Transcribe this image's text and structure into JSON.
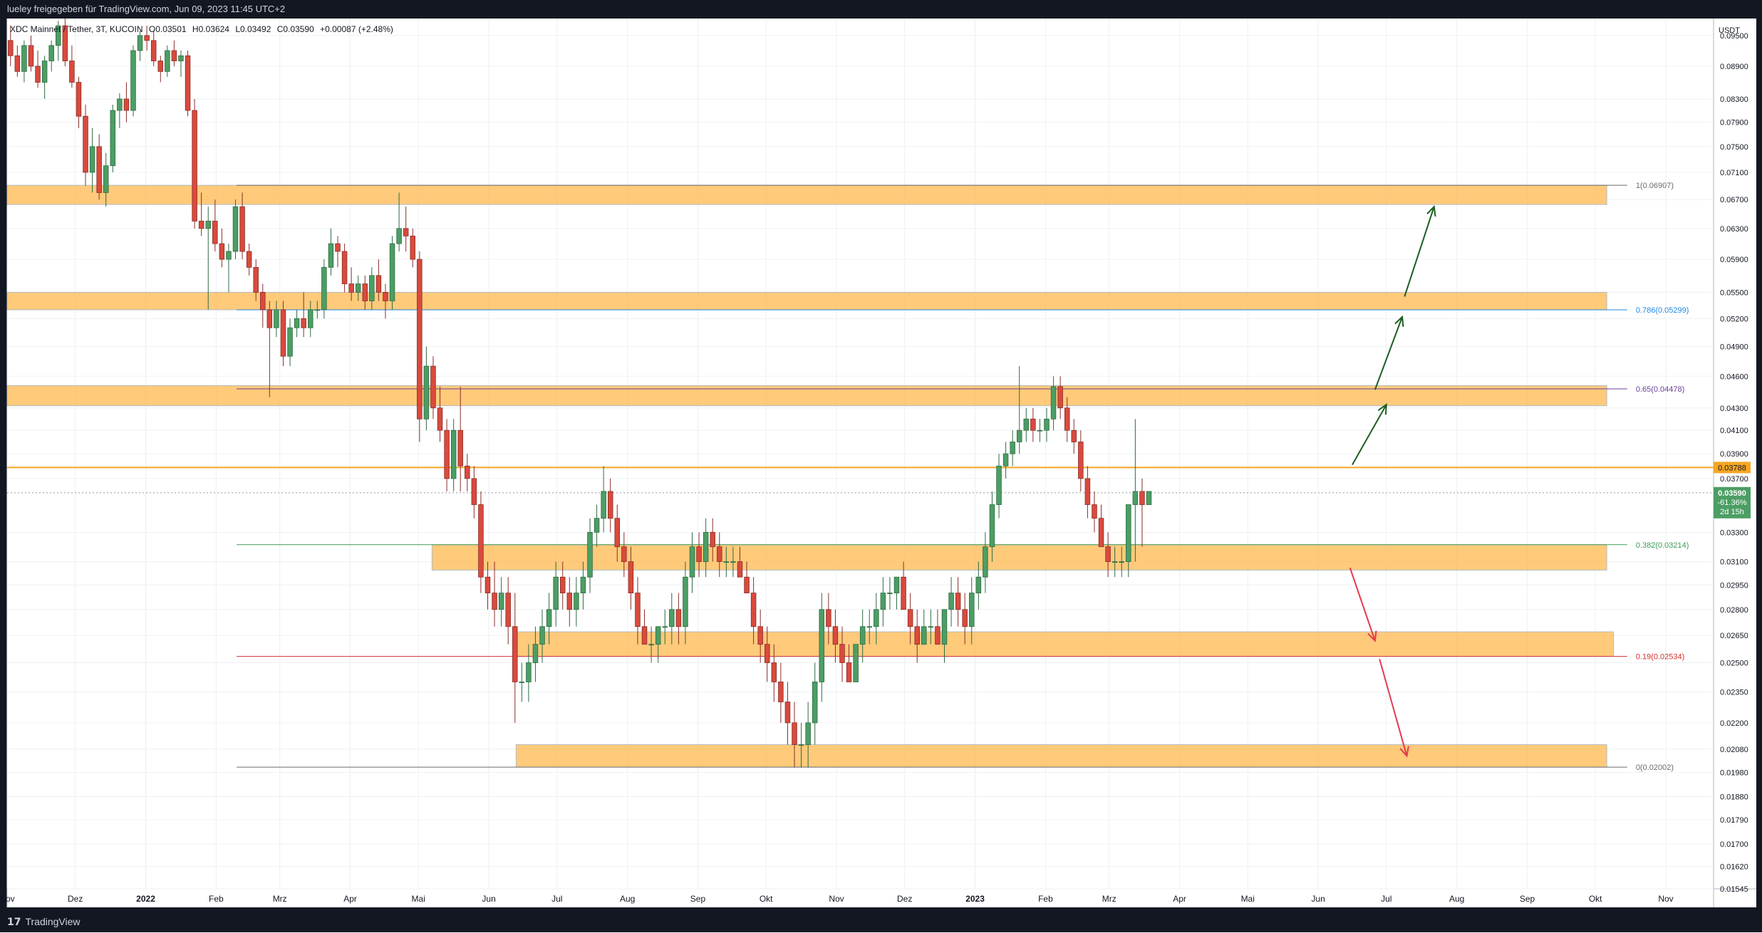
{
  "header": {
    "publish_note": "lueley freigegeben für TradingView.com, Jun 09, 2023 11:45 UTC+2"
  },
  "legend": {
    "symbol": "XDC Mainnet / Tether, 3T, KUCOIN",
    "open": "O0.03501",
    "high": "H0.03624",
    "low": "L0.03492",
    "close": "C0.03590",
    "change": "+0.00087 (+2.48%)"
  },
  "footer": {
    "brand": "TradingView",
    "logo_glyph": "17"
  },
  "colors": {
    "up": "#26a69a",
    "up_fill": "#4c9e64",
    "down": "#d94a3d",
    "zone_fill": "#ffb84d",
    "zone_border": "#b0bec5",
    "grid": "#edf0f4",
    "price_line": "#f5a623",
    "fib_green": "#3d9a58",
    "fib_red": "#d32f2f",
    "fib_blue": "#1e88e5",
    "fib_purple": "#6a3d9a",
    "fib_gray": "#6b6b6b",
    "arrow_green": "#1b5e20",
    "arrow_red": "#e53950"
  },
  "chart_data": {
    "type": "candlestick",
    "currency_label": "USDT",
    "scale": "log",
    "ylim": [
      0.01545,
      0.0985
    ],
    "y_ticks": [
      "0.09500",
      "0.08900",
      "0.08300",
      "0.07900",
      "0.07500",
      "0.07100",
      "0.06700",
      "0.06300",
      "0.05900",
      "0.05500",
      "0.05200",
      "0.04900",
      "0.04600",
      "0.04300",
      "0.04100",
      "0.03900",
      "0.03700",
      "0.03300",
      "0.03100",
      "0.02950",
      "0.02800",
      "0.02650",
      "0.02500",
      "0.02350",
      "0.02200",
      "0.02080",
      "0.01980",
      "0.01880",
      "0.01790",
      "0.01700",
      "0.01620",
      "0.01545"
    ],
    "x_range": [
      "2021-11-01",
      "2023-11-22"
    ],
    "x_ticks": [
      {
        "label": "Nov",
        "date": "2021-11-01"
      },
      {
        "label": "Dez",
        "date": "2021-12-01"
      },
      {
        "label": "2022",
        "date": "2022-01-01"
      },
      {
        "label": "Feb",
        "date": "2022-02-01"
      },
      {
        "label": "Mrz",
        "date": "2022-03-01"
      },
      {
        "label": "Apr",
        "date": "2022-04-01"
      },
      {
        "label": "Mai",
        "date": "2022-05-01"
      },
      {
        "label": "Jun",
        "date": "2022-06-01"
      },
      {
        "label": "Jul",
        "date": "2022-07-01"
      },
      {
        "label": "Aug",
        "date": "2022-08-01"
      },
      {
        "label": "Sep",
        "date": "2022-09-01"
      },
      {
        "label": "Okt",
        "date": "2022-10-01"
      },
      {
        "label": "Nov",
        "date": "2022-11-01"
      },
      {
        "label": "Dez",
        "date": "2022-12-01"
      },
      {
        "label": "2023",
        "date": "2023-01-01"
      },
      {
        "label": "Feb",
        "date": "2023-02-01"
      },
      {
        "label": "Mrz",
        "date": "2023-03-01"
      },
      {
        "label": "Apr",
        "date": "2023-04-01"
      },
      {
        "label": "Mai",
        "date": "2023-05-01"
      },
      {
        "label": "Jun",
        "date": "2023-06-01"
      },
      {
        "label": "Jul",
        "date": "2023-07-01"
      },
      {
        "label": "Aug",
        "date": "2023-08-01"
      },
      {
        "label": "Sep",
        "date": "2023-09-01"
      },
      {
        "label": "Okt",
        "date": "2023-10-01"
      },
      {
        "label": "Nov",
        "date": "2023-11-01"
      }
    ],
    "current_price": {
      "value": 0.0359,
      "label": "0.03590",
      "change": "-61.36%",
      "countdown": "2d 15h"
    },
    "marked_level": {
      "value": 0.03788,
      "label": "0.03788"
    },
    "last_close_line": 0.0359,
    "fib_levels": [
      {
        "ratio": "1",
        "value": 0.06907,
        "label": "1(0.06907)",
        "color_key": "fib_gray"
      },
      {
        "ratio": "0.786",
        "value": 0.05299,
        "label": "0.786(0.05299)",
        "color_key": "fib_blue"
      },
      {
        "ratio": "0.65",
        "value": 0.04478,
        "label": "0.65(0.04478)",
        "color_key": "fib_purple"
      },
      {
        "ratio": "0.382",
        "value": 0.03214,
        "label": "0.382(0.03214)",
        "color_key": "fib_green"
      },
      {
        "ratio": "0.19",
        "value": 0.02534,
        "label": "0.19(0.02534)",
        "color_key": "fib_red"
      },
      {
        "ratio": "0",
        "value": 0.02002,
        "label": "0(0.02002)",
        "color_key": "fib_gray"
      }
    ],
    "fib_start_date": "2022-02-10",
    "fib_end_date": "2023-10-15",
    "zones": [
      {
        "name": "resistance-zone-1",
        "start": "2021-11-01",
        "end": "2023-10-06",
        "top": 0.06907,
        "bottom": 0.0663
      },
      {
        "name": "resistance-zone-2",
        "start": "2021-11-01",
        "end": "2023-10-06",
        "top": 0.055,
        "bottom": 0.05299
      },
      {
        "name": "resistance-zone-3",
        "start": "2021-11-01",
        "end": "2023-10-06",
        "top": 0.0451,
        "bottom": 0.0432
      },
      {
        "name": "support-zone-1",
        "start": "2022-05-07",
        "end": "2023-10-06",
        "top": 0.03214,
        "bottom": 0.03045
      },
      {
        "name": "support-zone-2",
        "start": "2022-06-13",
        "end": "2023-10-09",
        "top": 0.0267,
        "bottom": 0.02534
      },
      {
        "name": "support-zone-3",
        "start": "2022-06-13",
        "end": "2023-10-06",
        "top": 0.021,
        "bottom": 0.02002
      }
    ],
    "arrows": [
      {
        "color_key": "arrow_green",
        "from": {
          "date": "2023-06-16",
          "price": 0.0381
        },
        "to": {
          "date": "2023-07-01",
          "price": 0.0433
        }
      },
      {
        "color_key": "arrow_green",
        "from": {
          "date": "2023-06-26",
          "price": 0.0447
        },
        "to": {
          "date": "2023-07-08",
          "price": 0.0522
        }
      },
      {
        "color_key": "arrow_green",
        "from": {
          "date": "2023-07-09",
          "price": 0.0545
        },
        "to": {
          "date": "2023-07-22",
          "price": 0.066
        }
      },
      {
        "color_key": "arrow_red",
        "from": {
          "date": "2023-06-15",
          "price": 0.0306
        },
        "to": {
          "date": "2023-06-26",
          "price": 0.0262
        }
      },
      {
        "color_key": "arrow_red",
        "from": {
          "date": "2023-06-28",
          "price": 0.0252
        },
        "to": {
          "date": "2023-07-10",
          "price": 0.0205
        }
      }
    ],
    "candles_start": "2021-11-01",
    "candle_interval_days": 3,
    "candles": [
      [
        0.094,
        0.097,
        0.089,
        0.091
      ],
      [
        0.091,
        0.093,
        0.087,
        0.088
      ],
      [
        0.088,
        0.094,
        0.086,
        0.093
      ],
      [
        0.093,
        0.095,
        0.088,
        0.089
      ],
      [
        0.089,
        0.092,
        0.085,
        0.086
      ],
      [
        0.086,
        0.091,
        0.083,
        0.09
      ],
      [
        0.09,
        0.094,
        0.088,
        0.093
      ],
      [
        0.093,
        0.098,
        0.09,
        0.097
      ],
      [
        0.097,
        0.099,
        0.089,
        0.09
      ],
      [
        0.09,
        0.093,
        0.085,
        0.086
      ],
      [
        0.086,
        0.087,
        0.078,
        0.08
      ],
      [
        0.08,
        0.082,
        0.069,
        0.071
      ],
      [
        0.071,
        0.078,
        0.068,
        0.075
      ],
      [
        0.075,
        0.077,
        0.067,
        0.068
      ],
      [
        0.068,
        0.074,
        0.066,
        0.072
      ],
      [
        0.072,
        0.082,
        0.071,
        0.081
      ],
      [
        0.081,
        0.084,
        0.078,
        0.083
      ],
      [
        0.083,
        0.086,
        0.079,
        0.081
      ],
      [
        0.081,
        0.093,
        0.08,
        0.092
      ],
      [
        0.092,
        0.096,
        0.09,
        0.095
      ],
      [
        0.095,
        0.097,
        0.092,
        0.094
      ],
      [
        0.094,
        0.096,
        0.089,
        0.09
      ],
      [
        0.09,
        0.091,
        0.086,
        0.088
      ],
      [
        0.088,
        0.093,
        0.087,
        0.092
      ],
      [
        0.092,
        0.094,
        0.089,
        0.09
      ],
      [
        0.09,
        0.092,
        0.087,
        0.091
      ],
      [
        0.091,
        0.092,
        0.08,
        0.081
      ],
      [
        0.081,
        0.083,
        0.063,
        0.064
      ],
      [
        0.064,
        0.068,
        0.062,
        0.063
      ],
      [
        0.063,
        0.066,
        0.053,
        0.064
      ],
      [
        0.064,
        0.067,
        0.06,
        0.061
      ],
      [
        0.061,
        0.063,
        0.058,
        0.059
      ],
      [
        0.059,
        0.061,
        0.055,
        0.06
      ],
      [
        0.06,
        0.067,
        0.059,
        0.066
      ],
      [
        0.066,
        0.068,
        0.059,
        0.06
      ],
      [
        0.06,
        0.061,
        0.057,
        0.058
      ],
      [
        0.058,
        0.059,
        0.054,
        0.055
      ],
      [
        0.055,
        0.056,
        0.051,
        0.053
      ],
      [
        0.053,
        0.054,
        0.044,
        0.051
      ],
      [
        0.051,
        0.054,
        0.05,
        0.053
      ],
      [
        0.053,
        0.054,
        0.047,
        0.048
      ],
      [
        0.048,
        0.052,
        0.047,
        0.051
      ],
      [
        0.051,
        0.053,
        0.05,
        0.052
      ],
      [
        0.052,
        0.055,
        0.05,
        0.051
      ],
      [
        0.051,
        0.054,
        0.05,
        0.053
      ],
      [
        0.053,
        0.054,
        0.052,
        0.053
      ],
      [
        0.053,
        0.059,
        0.052,
        0.058
      ],
      [
        0.058,
        0.063,
        0.057,
        0.061
      ],
      [
        0.061,
        0.062,
        0.058,
        0.06
      ],
      [
        0.06,
        0.061,
        0.055,
        0.056
      ],
      [
        0.056,
        0.058,
        0.054,
        0.055
      ],
      [
        0.055,
        0.057,
        0.054,
        0.056
      ],
      [
        0.056,
        0.057,
        0.053,
        0.054
      ],
      [
        0.054,
        0.058,
        0.053,
        0.057
      ],
      [
        0.057,
        0.059,
        0.054,
        0.055
      ],
      [
        0.055,
        0.056,
        0.052,
        0.054
      ],
      [
        0.054,
        0.062,
        0.053,
        0.061
      ],
      [
        0.061,
        0.068,
        0.06,
        0.063
      ],
      [
        0.063,
        0.066,
        0.06,
        0.062
      ],
      [
        0.062,
        0.063,
        0.058,
        0.059
      ],
      [
        0.059,
        0.06,
        0.04,
        0.042
      ],
      [
        0.042,
        0.049,
        0.041,
        0.047
      ],
      [
        0.047,
        0.048,
        0.042,
        0.043
      ],
      [
        0.043,
        0.045,
        0.04,
        0.041
      ],
      [
        0.041,
        0.042,
        0.036,
        0.037
      ],
      [
        0.037,
        0.042,
        0.036,
        0.041
      ],
      [
        0.041,
        0.045,
        0.036,
        0.038
      ],
      [
        0.038,
        0.039,
        0.036,
        0.037
      ],
      [
        0.037,
        0.038,
        0.034,
        0.035
      ],
      [
        0.035,
        0.036,
        0.029,
        0.03
      ],
      [
        0.03,
        0.031,
        0.028,
        0.029
      ],
      [
        0.029,
        0.031,
        0.027,
        0.028
      ],
      [
        0.028,
        0.03,
        0.027,
        0.029
      ],
      [
        0.029,
        0.03,
        0.026,
        0.027
      ],
      [
        0.027,
        0.029,
        0.022,
        0.024
      ],
      [
        0.024,
        0.025,
        0.023,
        0.024
      ],
      [
        0.024,
        0.026,
        0.023,
        0.025
      ],
      [
        0.025,
        0.027,
        0.024,
        0.026
      ],
      [
        0.026,
        0.028,
        0.025,
        0.027
      ],
      [
        0.027,
        0.029,
        0.026,
        0.028
      ],
      [
        0.028,
        0.031,
        0.027,
        0.03
      ],
      [
        0.03,
        0.031,
        0.028,
        0.029
      ],
      [
        0.029,
        0.03,
        0.027,
        0.028
      ],
      [
        0.028,
        0.03,
        0.027,
        0.029
      ],
      [
        0.029,
        0.031,
        0.028,
        0.03
      ],
      [
        0.03,
        0.034,
        0.029,
        0.033
      ],
      [
        0.033,
        0.035,
        0.032,
        0.034
      ],
      [
        0.034,
        0.038,
        0.033,
        0.036
      ],
      [
        0.036,
        0.037,
        0.033,
        0.034
      ],
      [
        0.034,
        0.035,
        0.031,
        0.032
      ],
      [
        0.032,
        0.033,
        0.03,
        0.031
      ],
      [
        0.031,
        0.032,
        0.028,
        0.029
      ],
      [
        0.029,
        0.03,
        0.026,
        0.027
      ],
      [
        0.027,
        0.028,
        0.026,
        0.026
      ],
      [
        0.026,
        0.027,
        0.025,
        0.026
      ],
      [
        0.026,
        0.027,
        0.025,
        0.027
      ],
      [
        0.027,
        0.028,
        0.026,
        0.027
      ],
      [
        0.027,
        0.029,
        0.026,
        0.028
      ],
      [
        0.028,
        0.029,
        0.026,
        0.027
      ],
      [
        0.027,
        0.031,
        0.026,
        0.03
      ],
      [
        0.03,
        0.033,
        0.029,
        0.032
      ],
      [
        0.032,
        0.033,
        0.03,
        0.031
      ],
      [
        0.031,
        0.034,
        0.03,
        0.033
      ],
      [
        0.033,
        0.034,
        0.031,
        0.032
      ],
      [
        0.032,
        0.033,
        0.03,
        0.031
      ],
      [
        0.031,
        0.032,
        0.03,
        0.031
      ],
      [
        0.031,
        0.032,
        0.03,
        0.031
      ],
      [
        0.031,
        0.032,
        0.03,
        0.03
      ],
      [
        0.03,
        0.031,
        0.029,
        0.029
      ],
      [
        0.029,
        0.03,
        0.026,
        0.027
      ],
      [
        0.027,
        0.028,
        0.025,
        0.026
      ],
      [
        0.026,
        0.027,
        0.024,
        0.025
      ],
      [
        0.025,
        0.026,
        0.023,
        0.024
      ],
      [
        0.024,
        0.025,
        0.022,
        0.023
      ],
      [
        0.023,
        0.024,
        0.021,
        0.022
      ],
      [
        0.022,
        0.023,
        0.02,
        0.021
      ],
      [
        0.021,
        0.022,
        0.02,
        0.021
      ],
      [
        0.021,
        0.023,
        0.02,
        0.022
      ],
      [
        0.022,
        0.025,
        0.021,
        0.024
      ],
      [
        0.024,
        0.029,
        0.023,
        0.028
      ],
      [
        0.028,
        0.029,
        0.026,
        0.027
      ],
      [
        0.027,
        0.028,
        0.025,
        0.026
      ],
      [
        0.026,
        0.027,
        0.024,
        0.025
      ],
      [
        0.025,
        0.026,
        0.024,
        0.024
      ],
      [
        0.024,
        0.026,
        0.024,
        0.026
      ],
      [
        0.026,
        0.028,
        0.025,
        0.027
      ],
      [
        0.027,
        0.028,
        0.026,
        0.027
      ],
      [
        0.027,
        0.029,
        0.026,
        0.028
      ],
      [
        0.028,
        0.03,
        0.027,
        0.029
      ],
      [
        0.029,
        0.03,
        0.028,
        0.029
      ],
      [
        0.029,
        0.03,
        0.028,
        0.03
      ],
      [
        0.03,
        0.031,
        0.028,
        0.028
      ],
      [
        0.028,
        0.029,
        0.026,
        0.027
      ],
      [
        0.027,
        0.028,
        0.025,
        0.026
      ],
      [
        0.026,
        0.028,
        0.026,
        0.027
      ],
      [
        0.027,
        0.028,
        0.026,
        0.027
      ],
      [
        0.027,
        0.028,
        0.026,
        0.026
      ],
      [
        0.026,
        0.028,
        0.025,
        0.028
      ],
      [
        0.028,
        0.03,
        0.027,
        0.029
      ],
      [
        0.029,
        0.03,
        0.027,
        0.028
      ],
      [
        0.028,
        0.029,
        0.026,
        0.027
      ],
      [
        0.027,
        0.03,
        0.026,
        0.029
      ],
      [
        0.029,
        0.031,
        0.028,
        0.03
      ],
      [
        0.03,
        0.033,
        0.029,
        0.032
      ],
      [
        0.032,
        0.036,
        0.031,
        0.035
      ],
      [
        0.035,
        0.039,
        0.034,
        0.038
      ],
      [
        0.038,
        0.04,
        0.037,
        0.039
      ],
      [
        0.039,
        0.041,
        0.038,
        0.04
      ],
      [
        0.04,
        0.047,
        0.039,
        0.041
      ],
      [
        0.041,
        0.043,
        0.04,
        0.042
      ],
      [
        0.042,
        0.043,
        0.04,
        0.041
      ],
      [
        0.041,
        0.042,
        0.04,
        0.041
      ],
      [
        0.041,
        0.043,
        0.04,
        0.042
      ],
      [
        0.042,
        0.046,
        0.041,
        0.045
      ],
      [
        0.045,
        0.046,
        0.042,
        0.043
      ],
      [
        0.043,
        0.044,
        0.04,
        0.041
      ],
      [
        0.041,
        0.042,
        0.039,
        0.04
      ],
      [
        0.04,
        0.041,
        0.036,
        0.037
      ],
      [
        0.037,
        0.038,
        0.034,
        0.035
      ],
      [
        0.035,
        0.036,
        0.033,
        0.034
      ],
      [
        0.034,
        0.035,
        0.032,
        0.032
      ],
      [
        0.032,
        0.033,
        0.03,
        0.031
      ],
      [
        0.031,
        0.032,
        0.03,
        0.031
      ],
      [
        0.031,
        0.032,
        0.03,
        0.031
      ],
      [
        0.031,
        0.035,
        0.03,
        0.035
      ],
      [
        0.035,
        0.042,
        0.031,
        0.036
      ],
      [
        0.036,
        0.037,
        0.032,
        0.035
      ],
      [
        0.035,
        0.036,
        0.035,
        0.036
      ]
    ]
  }
}
